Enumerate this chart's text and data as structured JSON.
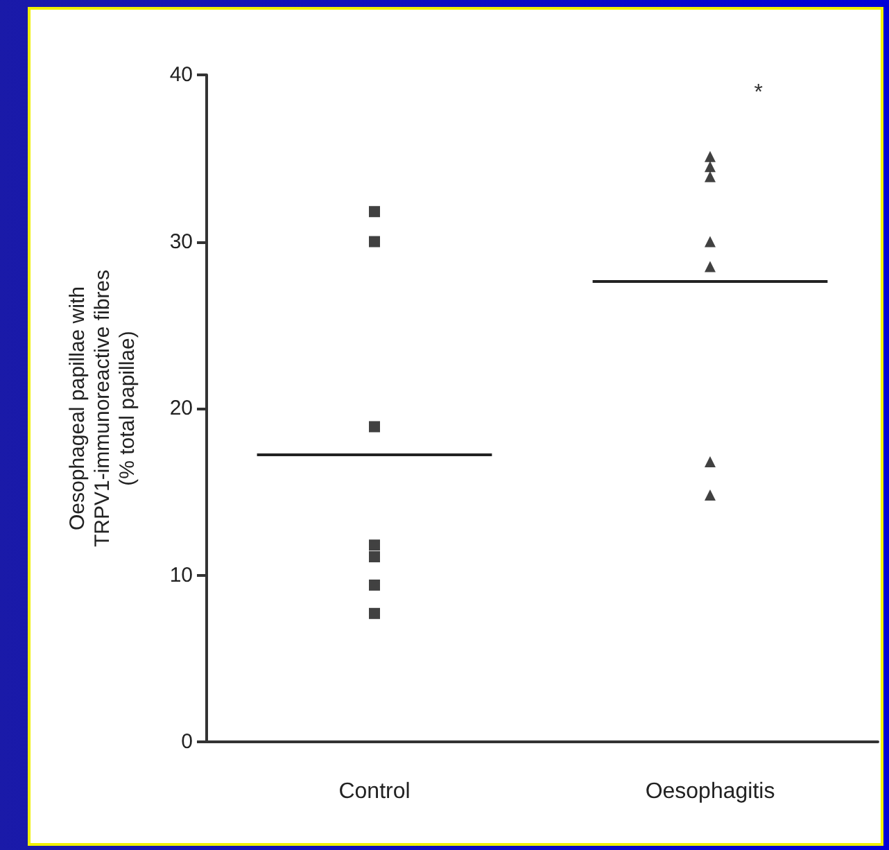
{
  "chart_data": {
    "type": "scatter",
    "ylabel": "Oesophageal papillae with\nTRPV1-immunoreactive fibres\n(% total papillae)",
    "categories": [
      "Control",
      "Oesophagitis"
    ],
    "ylim": [
      0,
      40
    ],
    "yticks": [
      0,
      10,
      20,
      30,
      40
    ],
    "grid": false,
    "series": [
      {
        "marker": "square",
        "color": "#111111",
        "x": [
          "Control",
          "Control",
          "Control",
          "Control",
          "Control",
          "Control",
          "Control"
        ],
        "values": [
          31.8,
          30.0,
          18.9,
          11.8,
          11.1,
          9.4,
          7.7
        ]
      },
      {
        "marker": "triangle",
        "color": "#111111",
        "x": [
          "Oesophagitis",
          "Oesophagitis",
          "Oesophagitis",
          "Oesophagitis",
          "Oesophagitis",
          "Oesophagitis",
          "Oesophagitis"
        ],
        "values": [
          35.1,
          34.5,
          33.9,
          30.0,
          28.5,
          16.8,
          14.8
        ]
      }
    ],
    "ref_lines": [
      {
        "axis": "y",
        "value": 17.2,
        "color": "#222222"
      },
      {
        "axis": "y",
        "value": 27.6,
        "color": "#222222"
      }
    ],
    "annotations": [
      "*"
    ]
  }
}
